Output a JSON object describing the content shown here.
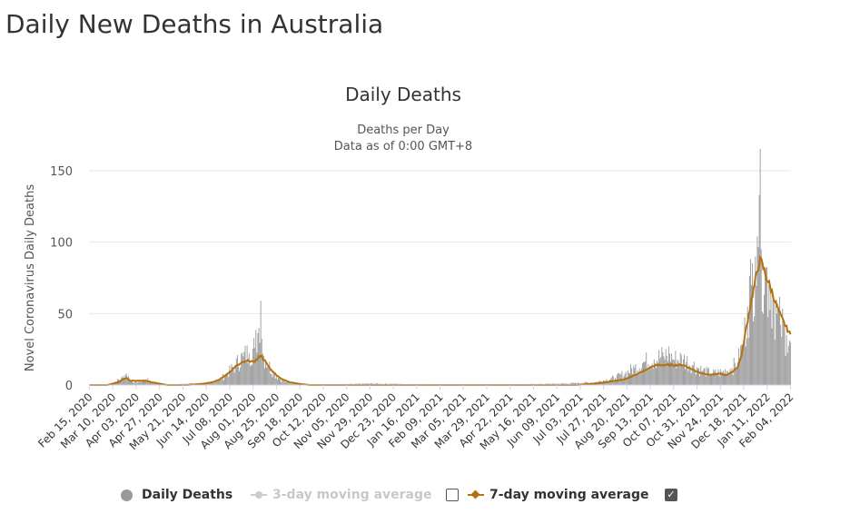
{
  "page_title": "Daily New Deaths in Australia",
  "colors": {
    "bars": "#999999",
    "line7": "#b5700f",
    "line3_disabled": "#cccccc",
    "grid": "#e6e6e6",
    "text": "#333333"
  },
  "legend": {
    "daily": "Daily Deaths",
    "three_day": "3-day moving average",
    "seven_day": "7-day moving average",
    "three_day_checked": false,
    "seven_day_checked": true
  },
  "chart_data": {
    "type": "bar",
    "title": "Daily Deaths",
    "subtitle_lines": [
      "Deaths per Day",
      "Data as of 0:00 GMT+8"
    ],
    "ylabel": "Novel Coronavirus Daily Deaths",
    "xlabel": "",
    "ylim": [
      0,
      150
    ],
    "yticks": [
      0,
      50,
      100,
      150
    ],
    "x_start": "2020-02-15",
    "x_tick_labels": [
      "Feb 15, 2020",
      "Mar 10, 2020",
      "Apr 03, 2020",
      "Apr 27, 2020",
      "May 21, 2020",
      "Jun 14, 2020",
      "Jul 08, 2020",
      "Aug 01, 2020",
      "Aug 25, 2020",
      "Sep 18, 2020",
      "Oct 12, 2020",
      "Nov 05, 2020",
      "Nov 29, 2020",
      "Dec 23, 2020",
      "Jan 16, 2021",
      "Feb 09, 2021",
      "Mar 05, 2021",
      "Mar 29, 2021",
      "Apr 22, 2021",
      "May 16, 2021",
      "Jun 09, 2021",
      "Jul 03, 2021",
      "Jul 27, 2021",
      "Aug 20, 2021",
      "Sep 13, 2021",
      "Oct 07, 2021",
      "Oct 31, 2021",
      "Nov 24, 2021",
      "Dec 18, 2021",
      "Jan 11, 2022",
      "Feb 04, 2022"
    ],
    "series": [
      {
        "name": "Daily Deaths",
        "kind": "bar",
        "note": "piecewise daily values (day index from Feb 15, 2020 -> deaths), interpolated between points",
        "points": [
          [
            0,
            0
          ],
          [
            18,
            0
          ],
          [
            26,
            2
          ],
          [
            34,
            5
          ],
          [
            38,
            8
          ],
          [
            42,
            3
          ],
          [
            50,
            2
          ],
          [
            58,
            4
          ],
          [
            64,
            2
          ],
          [
            72,
            1
          ],
          [
            80,
            0
          ],
          [
            100,
            1
          ],
          [
            118,
            1
          ],
          [
            126,
            2
          ],
          [
            134,
            4
          ],
          [
            142,
            8
          ],
          [
            150,
            14
          ],
          [
            158,
            20
          ],
          [
            164,
            22
          ],
          [
            170,
            26
          ],
          [
            174,
            40
          ],
          [
            176,
            59
          ],
          [
            178,
            22
          ],
          [
            184,
            14
          ],
          [
            190,
            8
          ],
          [
            196,
            4
          ],
          [
            202,
            2
          ],
          [
            210,
            1
          ],
          [
            218,
            1
          ],
          [
            230,
            0
          ],
          [
            290,
            1
          ],
          [
            400,
            0
          ],
          [
            490,
            1
          ],
          [
            520,
            2
          ],
          [
            540,
            5
          ],
          [
            550,
            8
          ],
          [
            560,
            12
          ],
          [
            570,
            16
          ],
          [
            580,
            18
          ],
          [
            590,
            20
          ],
          [
            596,
            22
          ],
          [
            600,
            18
          ],
          [
            610,
            18
          ],
          [
            620,
            14
          ],
          [
            630,
            10
          ],
          [
            640,
            8
          ],
          [
            650,
            9
          ],
          [
            660,
            12
          ],
          [
            666,
            16
          ],
          [
            672,
            30
          ],
          [
            676,
            55
          ],
          [
            680,
            70
          ],
          [
            684,
            90
          ],
          [
            686,
            104
          ],
          [
            688,
            133
          ],
          [
            690,
            95
          ],
          [
            694,
            80
          ],
          [
            698,
            70
          ],
          [
            702,
            60
          ],
          [
            706,
            50
          ],
          [
            710,
            42
          ],
          [
            716,
            35
          ],
          [
            720,
            30
          ]
        ]
      },
      {
        "name": "7-day moving average",
        "kind": "line",
        "note": "piecewise (day index -> average)",
        "points": [
          [
            0,
            0
          ],
          [
            18,
            0
          ],
          [
            24,
            1
          ],
          [
            30,
            2
          ],
          [
            34,
            4
          ],
          [
            38,
            5
          ],
          [
            42,
            3
          ],
          [
            50,
            3
          ],
          [
            58,
            3
          ],
          [
            64,
            2
          ],
          [
            72,
            1
          ],
          [
            80,
            0
          ],
          [
            100,
            0
          ],
          [
            118,
            1
          ],
          [
            126,
            2
          ],
          [
            134,
            4
          ],
          [
            142,
            8
          ],
          [
            150,
            13
          ],
          [
            158,
            16
          ],
          [
            164,
            17
          ],
          [
            168,
            16
          ],
          [
            172,
            18
          ],
          [
            176,
            21
          ],
          [
            180,
            17
          ],
          [
            186,
            11
          ],
          [
            192,
            7
          ],
          [
            198,
            4
          ],
          [
            206,
            2
          ],
          [
            214,
            1
          ],
          [
            226,
            0
          ],
          [
            500,
            0
          ],
          [
            520,
            1
          ],
          [
            540,
            3
          ],
          [
            550,
            4
          ],
          [
            560,
            7
          ],
          [
            570,
            10
          ],
          [
            578,
            13
          ],
          [
            584,
            14
          ],
          [
            590,
            14
          ],
          [
            600,
            14
          ],
          [
            610,
            14
          ],
          [
            616,
            12
          ],
          [
            622,
            10
          ],
          [
            630,
            8
          ],
          [
            638,
            7
          ],
          [
            646,
            8
          ],
          [
            654,
            7
          ],
          [
            660,
            9
          ],
          [
            666,
            13
          ],
          [
            670,
            22
          ],
          [
            674,
            38
          ],
          [
            680,
            60
          ],
          [
            686,
            80
          ],
          [
            688,
            87
          ],
          [
            690,
            86
          ],
          [
            694,
            78
          ],
          [
            700,
            67
          ],
          [
            706,
            55
          ],
          [
            710,
            48
          ],
          [
            716,
            40
          ],
          [
            720,
            35
          ]
        ]
      },
      {
        "name": "3-day moving average",
        "kind": "line",
        "disabled": true,
        "points": []
      }
    ]
  }
}
